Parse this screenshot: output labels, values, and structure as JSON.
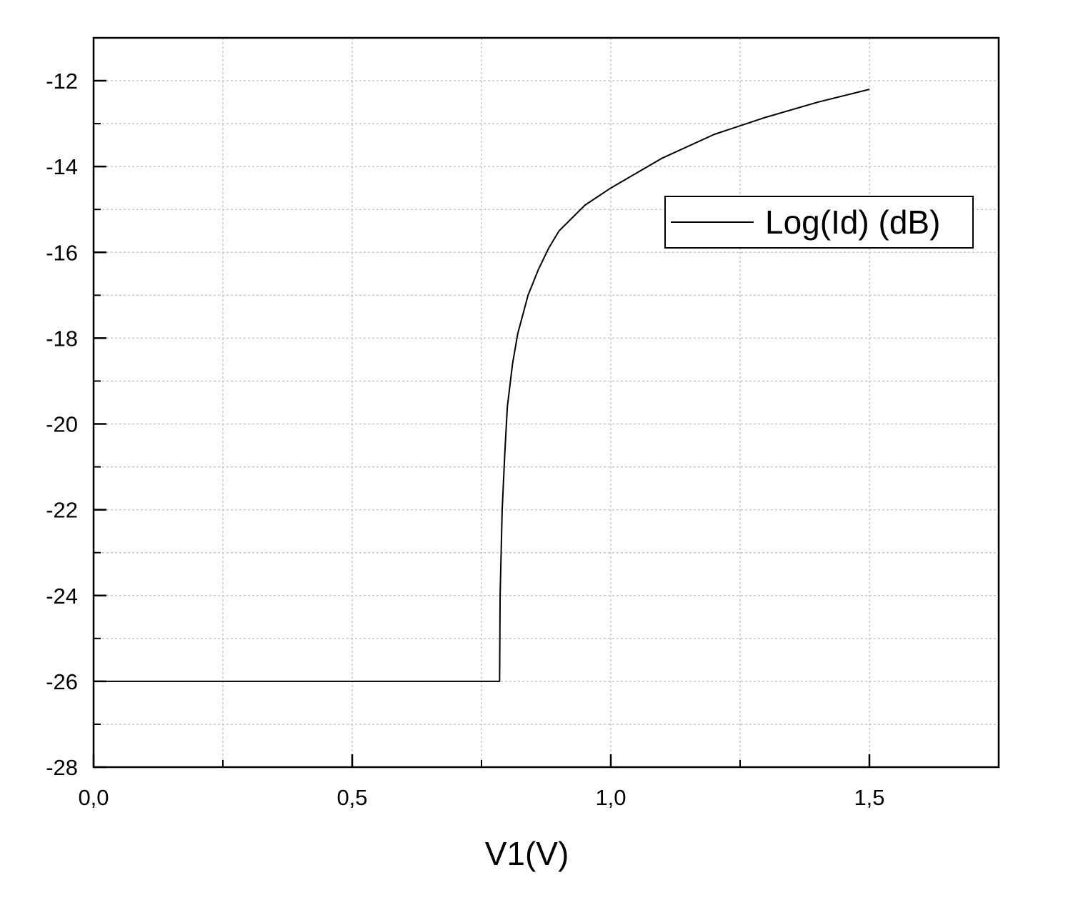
{
  "chart_data": {
    "type": "line",
    "title": "",
    "xlabel": "V1(V)",
    "ylabel": "",
    "xlim": [
      0,
      1.75
    ],
    "ylim": [
      -28,
      -11
    ],
    "grid": true,
    "legend_position": "top-right",
    "x_ticks": [
      {
        "value": 0.0,
        "label": "0,0"
      },
      {
        "value": 0.5,
        "label": "0,5"
      },
      {
        "value": 1.0,
        "label": "1,0"
      },
      {
        "value": 1.5,
        "label": "1,5"
      }
    ],
    "x_minor_ticks": [
      0.25,
      0.75,
      1.25,
      1.75
    ],
    "y_ticks": [
      {
        "value": -12,
        "label": "-12"
      },
      {
        "value": -14,
        "label": "-14"
      },
      {
        "value": -16,
        "label": "-16"
      },
      {
        "value": -18,
        "label": "-18"
      },
      {
        "value": -20,
        "label": "-20"
      },
      {
        "value": -22,
        "label": "-22"
      },
      {
        "value": -24,
        "label": "-24"
      },
      {
        "value": -26,
        "label": "-26"
      },
      {
        "value": -28,
        "label": "-28"
      }
    ],
    "y_minor_ticks": [
      -13,
      -15,
      -17,
      -19,
      -21,
      -23,
      -25,
      -27
    ],
    "series": [
      {
        "name": "Log(Id) (dB)",
        "color": "#000000",
        "x": [
          0.0,
          0.2,
          0.4,
          0.6,
          0.785,
          0.786,
          0.79,
          0.795,
          0.8,
          0.81,
          0.82,
          0.84,
          0.86,
          0.88,
          0.9,
          0.95,
          1.0,
          1.1,
          1.2,
          1.3,
          1.4,
          1.5
        ],
        "y": [
          -26.0,
          -26.0,
          -26.0,
          -26.0,
          -26.0,
          -24.0,
          -22.0,
          -20.7,
          -19.6,
          -18.6,
          -17.9,
          -17.0,
          -16.4,
          -15.9,
          -15.5,
          -14.9,
          -14.5,
          -13.8,
          -13.25,
          -12.85,
          -12.5,
          -12.2
        ]
      }
    ]
  }
}
